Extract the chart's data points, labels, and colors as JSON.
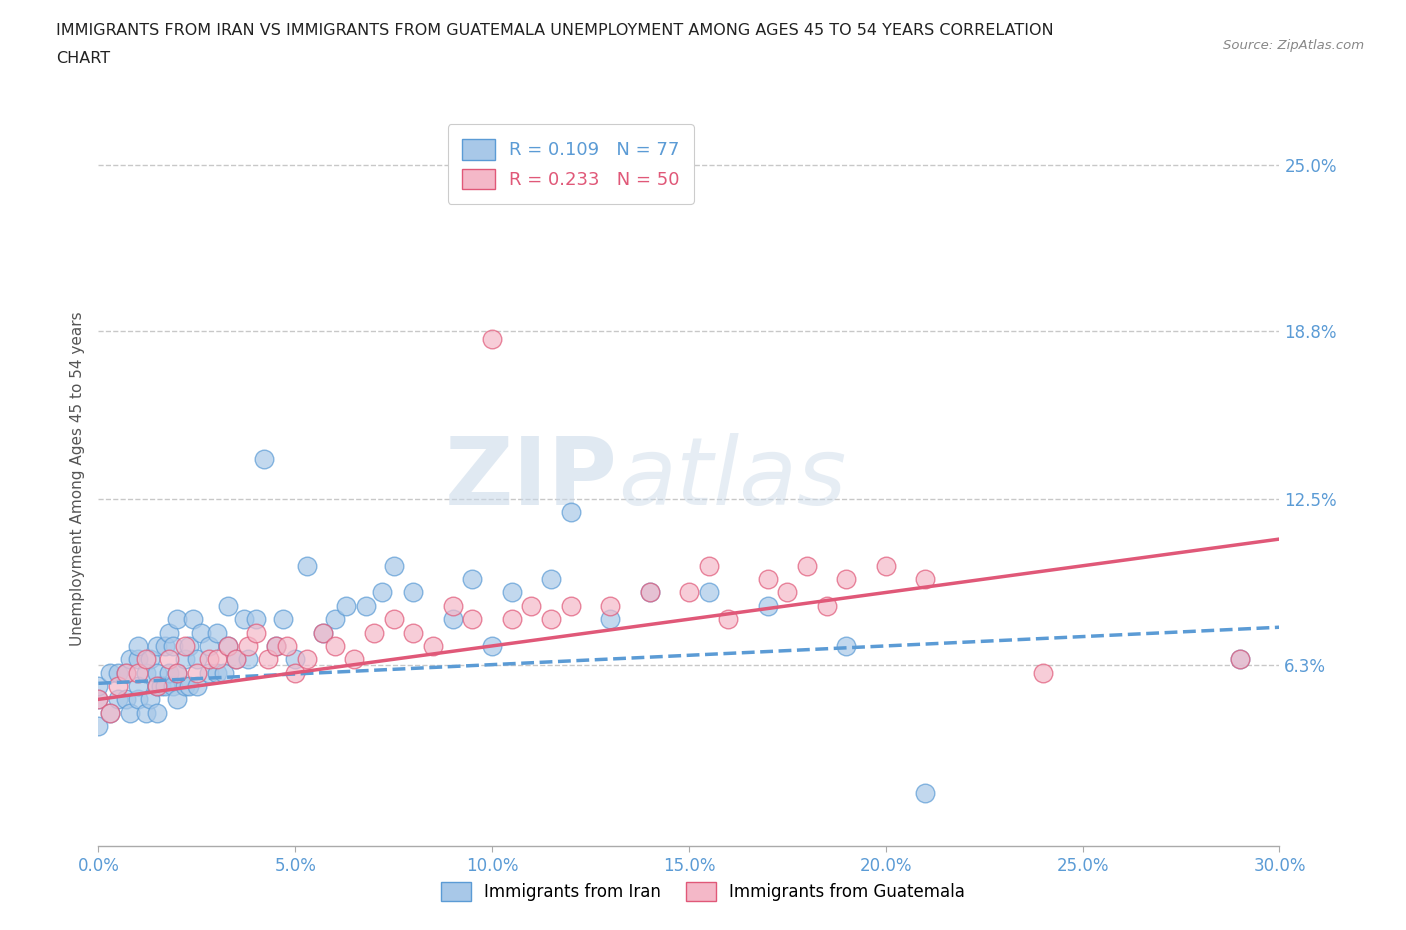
{
  "title": "IMMIGRANTS FROM IRAN VS IMMIGRANTS FROM GUATEMALA UNEMPLOYMENT AMONG AGES 45 TO 54 YEARS CORRELATION\nCHART",
  "source_text": "Source: ZipAtlas.com",
  "ylabel": "Unemployment Among Ages 45 to 54 years",
  "legend_label_iran": "Immigrants from Iran",
  "legend_label_guatemala": "Immigrants from Guatemala",
  "R_iran": 0.109,
  "N_iran": 77,
  "R_guatemala": 0.233,
  "N_guatemala": 50,
  "color_iran": "#a8c8e8",
  "color_iran_line": "#5b9bd5",
  "color_guatemala": "#f4b8c8",
  "color_guatemala_line": "#e05878",
  "watermark": "ZIPatlas",
  "xlim": [
    0.0,
    0.3
  ],
  "ylim": [
    -0.005,
    0.27
  ],
  "yticks": [
    0.063,
    0.125,
    0.188,
    0.25
  ],
  "ytick_labels": [
    "6.3%",
    "12.5%",
    "18.8%",
    "25.0%"
  ],
  "xticks": [
    0.0,
    0.05,
    0.1,
    0.15,
    0.2,
    0.25,
    0.3
  ],
  "xtick_labels": [
    "0.0%",
    "5.0%",
    "10.0%",
    "15.0%",
    "20.0%",
    "25.0%",
    "30.0%"
  ],
  "iran_x": [
    0.0,
    0.0,
    0.0,
    0.003,
    0.003,
    0.005,
    0.005,
    0.007,
    0.007,
    0.008,
    0.008,
    0.01,
    0.01,
    0.01,
    0.01,
    0.012,
    0.012,
    0.013,
    0.013,
    0.015,
    0.015,
    0.015,
    0.015,
    0.016,
    0.017,
    0.017,
    0.018,
    0.018,
    0.019,
    0.019,
    0.02,
    0.02,
    0.02,
    0.022,
    0.022,
    0.023,
    0.023,
    0.024,
    0.025,
    0.025,
    0.026,
    0.028,
    0.028,
    0.03,
    0.03,
    0.032,
    0.033,
    0.033,
    0.035,
    0.037,
    0.038,
    0.04,
    0.042,
    0.045,
    0.047,
    0.05,
    0.053,
    0.057,
    0.06,
    0.063,
    0.068,
    0.072,
    0.075,
    0.08,
    0.09,
    0.095,
    0.1,
    0.105,
    0.115,
    0.12,
    0.13,
    0.14,
    0.155,
    0.17,
    0.19,
    0.21,
    0.29
  ],
  "iran_y": [
    0.04,
    0.05,
    0.055,
    0.045,
    0.06,
    0.05,
    0.06,
    0.05,
    0.06,
    0.045,
    0.065,
    0.05,
    0.055,
    0.065,
    0.07,
    0.045,
    0.06,
    0.05,
    0.065,
    0.045,
    0.055,
    0.06,
    0.07,
    0.055,
    0.055,
    0.07,
    0.06,
    0.075,
    0.055,
    0.07,
    0.05,
    0.06,
    0.08,
    0.055,
    0.065,
    0.055,
    0.07,
    0.08,
    0.055,
    0.065,
    0.075,
    0.06,
    0.07,
    0.06,
    0.075,
    0.06,
    0.07,
    0.085,
    0.065,
    0.08,
    0.065,
    0.08,
    0.14,
    0.07,
    0.08,
    0.065,
    0.1,
    0.075,
    0.08,
    0.085,
    0.085,
    0.09,
    0.1,
    0.09,
    0.08,
    0.095,
    0.07,
    0.09,
    0.095,
    0.12,
    0.08,
    0.09,
    0.09,
    0.085,
    0.07,
    0.015,
    0.065
  ],
  "guatemala_x": [
    0.0,
    0.003,
    0.005,
    0.007,
    0.01,
    0.012,
    0.015,
    0.018,
    0.02,
    0.022,
    0.025,
    0.028,
    0.03,
    0.033,
    0.035,
    0.038,
    0.04,
    0.043,
    0.045,
    0.048,
    0.05,
    0.053,
    0.057,
    0.06,
    0.065,
    0.07,
    0.075,
    0.08,
    0.085,
    0.09,
    0.095,
    0.1,
    0.105,
    0.11,
    0.115,
    0.12,
    0.13,
    0.14,
    0.15,
    0.155,
    0.16,
    0.17,
    0.175,
    0.18,
    0.185,
    0.19,
    0.2,
    0.21,
    0.24,
    0.29
  ],
  "guatemala_y": [
    0.05,
    0.045,
    0.055,
    0.06,
    0.06,
    0.065,
    0.055,
    0.065,
    0.06,
    0.07,
    0.06,
    0.065,
    0.065,
    0.07,
    0.065,
    0.07,
    0.075,
    0.065,
    0.07,
    0.07,
    0.06,
    0.065,
    0.075,
    0.07,
    0.065,
    0.075,
    0.08,
    0.075,
    0.07,
    0.085,
    0.08,
    0.185,
    0.08,
    0.085,
    0.08,
    0.085,
    0.085,
    0.09,
    0.09,
    0.1,
    0.08,
    0.095,
    0.09,
    0.1,
    0.085,
    0.095,
    0.1,
    0.095,
    0.06,
    0.065
  ],
  "iran_trend_x": [
    0.0,
    0.3
  ],
  "iran_trend_y": [
    0.056,
    0.077
  ],
  "guatemala_trend_x": [
    0.0,
    0.3
  ],
  "guatemala_trend_y": [
    0.05,
    0.11
  ]
}
